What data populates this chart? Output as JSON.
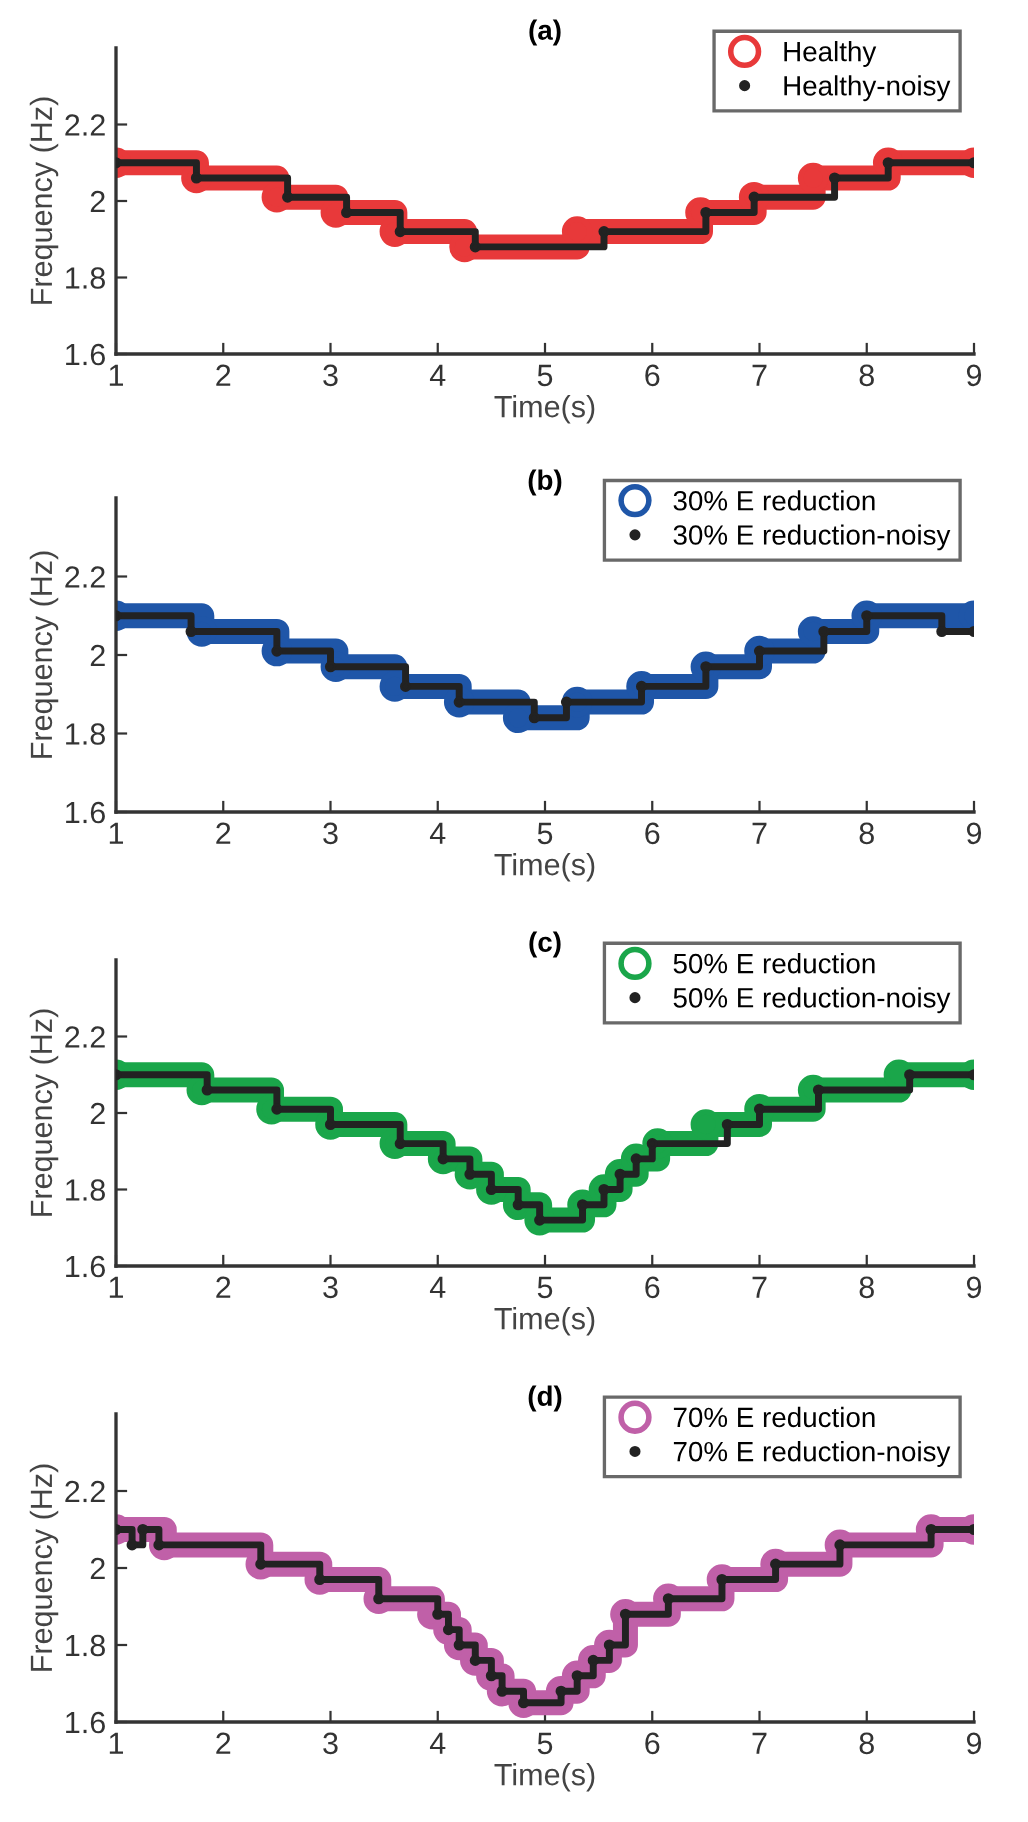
{
  "chart_data": [
    {
      "type": "step",
      "title": "(a)",
      "xlabel": "Time(s)",
      "ylabel": "Frequency (Hz)",
      "xlim": [
        1,
        9
      ],
      "ylim": [
        1.6,
        2.4
      ],
      "xticks": [
        1,
        2,
        3,
        4,
        5,
        6,
        7,
        8,
        9
      ],
      "yticks": [
        1.6,
        1.8,
        2,
        2.2
      ],
      "grid": false,
      "legend": "top right",
      "marker": "circle",
      "series": [
        {
          "name": "Healthy",
          "color": "#e8393a",
          "x": [
            1,
            1.75,
            2.5,
            3.05,
            3.6,
            4.25,
            5.3,
            6.45,
            6.95,
            7.5,
            8.2,
            9
          ],
          "values": [
            2.1,
            2.06,
            2.01,
            1.97,
            1.92,
            1.88,
            1.92,
            1.97,
            2.01,
            2.06,
            2.1,
            2.1
          ]
        },
        {
          "name": "Healthy-noisy",
          "color": "#222222",
          "x": [
            1,
            1.75,
            2.6,
            3.15,
            3.65,
            4.35,
            5.55,
            6.5,
            6.95,
            7.7,
            8.2,
            9
          ],
          "values": [
            2.1,
            2.06,
            2.01,
            1.97,
            1.92,
            1.88,
            1.92,
            1.97,
            2.01,
            2.06,
            2.1,
            2.1
          ]
        }
      ]
    },
    {
      "type": "step",
      "title": "(b)",
      "xlabel": "Time(s)",
      "ylabel": "Frequency (Hz)",
      "xlim": [
        1,
        9
      ],
      "ylim": [
        1.6,
        2.4
      ],
      "xticks": [
        1,
        2,
        3,
        4,
        5,
        6,
        7,
        8,
        9
      ],
      "yticks": [
        1.6,
        1.8,
        2,
        2.2
      ],
      "grid": false,
      "legend": "top right",
      "marker": "circle",
      "series": [
        {
          "name": "30% E reduction",
          "color": "#1f56a8",
          "x": [
            1,
            1.8,
            2.5,
            3.05,
            3.6,
            4.2,
            4.75,
            5.3,
            5.9,
            6.5,
            7.0,
            7.5,
            8.0,
            9
          ],
          "values": [
            2.1,
            2.06,
            2.01,
            1.97,
            1.92,
            1.88,
            1.84,
            1.88,
            1.92,
            1.97,
            2.01,
            2.06,
            2.1,
            2.1
          ]
        },
        {
          "name": "30% E reduction-noisy",
          "color": "#222222",
          "x": [
            1,
            1.7,
            2.5,
            3.0,
            3.7,
            4.2,
            4.9,
            5.2,
            5.9,
            6.5,
            7.0,
            7.6,
            8.0,
            8.7,
            9
          ],
          "values": [
            2.1,
            2.06,
            2.01,
            1.97,
            1.92,
            1.88,
            1.84,
            1.88,
            1.92,
            1.97,
            2.01,
            2.06,
            2.1,
            2.06,
            2.06
          ]
        }
      ]
    },
    {
      "type": "step",
      "title": "(c)",
      "xlabel": "Time(s)",
      "ylabel": "Frequency (Hz)",
      "xlim": [
        1,
        9
      ],
      "ylim": [
        1.6,
        2.4
      ],
      "xticks": [
        1,
        2,
        3,
        4,
        5,
        6,
        7,
        8,
        9
      ],
      "yticks": [
        1.6,
        1.8,
        2,
        2.2
      ],
      "grid": false,
      "legend": "top right",
      "marker": "circle",
      "series": [
        {
          "name": "50% E reduction",
          "color": "#1aa64a",
          "x": [
            1,
            1.8,
            2.45,
            3.0,
            3.6,
            4.05,
            4.3,
            4.5,
            4.75,
            4.95,
            5.35,
            5.55,
            5.7,
            5.85,
            6.05,
            6.5,
            7.0,
            7.5,
            8.3,
            9
          ],
          "values": [
            2.1,
            2.06,
            2.01,
            1.97,
            1.92,
            1.88,
            1.84,
            1.8,
            1.76,
            1.72,
            1.76,
            1.8,
            1.84,
            1.88,
            1.92,
            1.97,
            2.01,
            2.06,
            2.1,
            2.1
          ]
        },
        {
          "name": "50% E reduction-noisy",
          "color": "#222222",
          "x": [
            1,
            1.85,
            2.5,
            3.0,
            3.65,
            4.05,
            4.3,
            4.5,
            4.75,
            4.95,
            5.35,
            5.55,
            5.7,
            5.85,
            6.0,
            6.7,
            7.0,
            7.55,
            8.4,
            9
          ],
          "values": [
            2.1,
            2.06,
            2.01,
            1.97,
            1.92,
            1.88,
            1.84,
            1.8,
            1.76,
            1.72,
            1.76,
            1.8,
            1.84,
            1.88,
            1.92,
            1.97,
            2.01,
            2.06,
            2.1,
            2.1
          ]
        }
      ]
    },
    {
      "type": "step",
      "title": "(d)",
      "xlabel": "Time(s)",
      "ylabel": "Frequency (Hz)",
      "xlim": [
        1,
        9
      ],
      "ylim": [
        1.6,
        2.4
      ],
      "xticks": [
        1,
        2,
        3,
        4,
        5,
        6,
        7,
        8,
        9
      ],
      "yticks": [
        1.6,
        1.8,
        2,
        2.2
      ],
      "grid": false,
      "legend": "top right",
      "marker": "circle",
      "series": [
        {
          "name": "70% E reduction",
          "color": "#c060a8",
          "x": [
            1,
            1.45,
            2.35,
            2.9,
            3.45,
            3.95,
            4.1,
            4.2,
            4.35,
            4.5,
            4.6,
            4.8,
            5.15,
            5.3,
            5.45,
            5.6,
            5.75,
            6.15,
            6.65,
            7.15,
            7.75,
            8.6,
            9
          ],
          "values": [
            2.1,
            2.06,
            2.01,
            1.97,
            1.92,
            1.88,
            1.84,
            1.8,
            1.76,
            1.72,
            1.68,
            1.65,
            1.68,
            1.72,
            1.76,
            1.8,
            1.88,
            1.92,
            1.97,
            2.01,
            2.06,
            2.1,
            2.1
          ]
        },
        {
          "name": "70% E reduction-noisy",
          "color": "#222222",
          "x": [
            1,
            1.15,
            1.25,
            1.4,
            2.35,
            2.9,
            3.45,
            4.0,
            4.1,
            4.2,
            4.35,
            4.5,
            4.6,
            4.8,
            5.15,
            5.3,
            5.45,
            5.6,
            5.75,
            6.15,
            6.65,
            7.15,
            7.75,
            8.6,
            9
          ],
          "values": [
            2.1,
            2.06,
            2.1,
            2.06,
            2.01,
            1.97,
            1.92,
            1.88,
            1.84,
            1.8,
            1.76,
            1.72,
            1.68,
            1.65,
            1.68,
            1.72,
            1.76,
            1.8,
            1.88,
            1.92,
            1.97,
            2.01,
            2.06,
            2.1,
            2.1
          ]
        }
      ]
    }
  ]
}
